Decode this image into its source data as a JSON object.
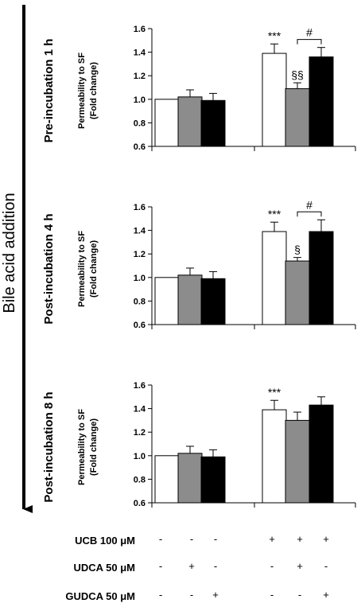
{
  "figure": {
    "side_label": "Bile acid addition",
    "conditions": [
      {
        "label": "UCB 100 μM",
        "signs": [
          "-",
          "-",
          "-",
          "+",
          "+",
          "+"
        ]
      },
      {
        "label": "UDCA 50 μM",
        "signs": [
          "-",
          "+",
          "-",
          "-",
          "+",
          "-"
        ]
      },
      {
        "label": "GUDCA 50 μM",
        "signs": [
          "-",
          "-",
          "+",
          "-",
          "-",
          "+"
        ]
      }
    ]
  },
  "chart_data": [
    {
      "type": "bar",
      "title": "Pre-incubation  1 h",
      "ylabel": "Permeability to SF",
      "ylabel2": "(Fold change)",
      "ylim": [
        0.6,
        1.6
      ],
      "yticks": [
        "0.6",
        "0.8",
        "1.0",
        "1.2",
        "1.4",
        "1.6"
      ],
      "groups": 2,
      "bars_per_group": 3,
      "values": [
        1.0,
        1.02,
        0.99,
        1.39,
        1.09,
        1.36
      ],
      "errors": [
        0.0,
        0.06,
        0.06,
        0.08,
        0.05,
        0.08
      ],
      "colors": [
        "#ffffff",
        "#8c8c8c",
        "#000000",
        "#ffffff",
        "#8c8c8c",
        "#000000"
      ],
      "annotations": [
        {
          "bar": 3,
          "text": "***"
        },
        {
          "bar": 4,
          "text": "§§"
        }
      ],
      "brackets": [
        {
          "from": 4,
          "to": 5,
          "text": "#"
        }
      ]
    },
    {
      "type": "bar",
      "title": "Post-incubation  4 h",
      "ylabel": "Permeability to SF",
      "ylabel2": "(Fold change)",
      "ylim": [
        0.6,
        1.6
      ],
      "yticks": [
        "0.6",
        "0.8",
        "1.0",
        "1.2",
        "1.4",
        "1.6"
      ],
      "groups": 2,
      "bars_per_group": 3,
      "values": [
        1.0,
        1.02,
        0.99,
        1.39,
        1.14,
        1.39
      ],
      "errors": [
        0.0,
        0.06,
        0.06,
        0.08,
        0.03,
        0.1
      ],
      "colors": [
        "#ffffff",
        "#8c8c8c",
        "#000000",
        "#ffffff",
        "#8c8c8c",
        "#000000"
      ],
      "annotations": [
        {
          "bar": 3,
          "text": "***"
        },
        {
          "bar": 4,
          "text": "§"
        }
      ],
      "brackets": [
        {
          "from": 4,
          "to": 5,
          "text": "#"
        }
      ]
    },
    {
      "type": "bar",
      "title": "Post-incubation 8 h",
      "ylabel": "Permeability to SF",
      "ylabel2": "(Fold change)",
      "ylim": [
        0.6,
        1.6
      ],
      "yticks": [
        "0.6",
        "0.8",
        "1.0",
        "1.2",
        "1.4",
        "1.6"
      ],
      "groups": 2,
      "bars_per_group": 3,
      "values": [
        1.0,
        1.02,
        0.99,
        1.39,
        1.3,
        1.43
      ],
      "errors": [
        0.0,
        0.06,
        0.06,
        0.08,
        0.07,
        0.07
      ],
      "colors": [
        "#ffffff",
        "#8c8c8c",
        "#000000",
        "#ffffff",
        "#8c8c8c",
        "#000000"
      ],
      "annotations": [
        {
          "bar": 3,
          "text": "***"
        }
      ],
      "brackets": []
    }
  ]
}
